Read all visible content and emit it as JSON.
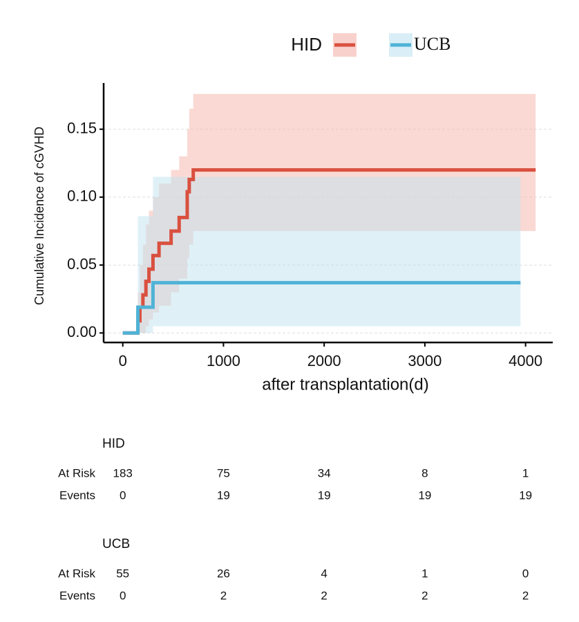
{
  "chart_data": {
    "type": "step",
    "y_label": "Cumulative Incidence of cGVHD",
    "x_label": "after transplantation(d)",
    "xlim": [
      -190,
      4270
    ],
    "ylim": [
      -0.007,
      0.184
    ],
    "xticks": [
      0,
      1000,
      2000,
      3000,
      4000
    ],
    "yticks": [
      {
        "value": 0,
        "label": "0.00"
      },
      {
        "value": 0.05,
        "label": "0.05"
      },
      {
        "value": 0.1,
        "label": "0.10"
      },
      {
        "value": 0.15,
        "label": "0.15"
      }
    ],
    "grid": true,
    "series": [
      {
        "name": "HID",
        "color": "#d9503f",
        "band_color": "#f5b3aa",
        "x": [
          0,
          150,
          170,
          200,
          230,
          260,
          300,
          360,
          420,
          480,
          530,
          560,
          600,
          640,
          660,
          700,
          4100
        ],
        "values": [
          0,
          0.009,
          0.019,
          0.028,
          0.038,
          0.047,
          0.057,
          0.066,
          0.066,
          0.075,
          0.075,
          0.085,
          0.085,
          0.104,
          0.113,
          0.12,
          0.12
        ],
        "upper": [
          0,
          0.03,
          0.05,
          0.065,
          0.08,
          0.09,
          0.1,
          0.11,
          0.11,
          0.12,
          0.12,
          0.13,
          0.13,
          0.15,
          0.165,
          0.176,
          0.176
        ],
        "lower": [
          0,
          0,
          0,
          0,
          0.005,
          0.01,
          0.015,
          0.02,
          0.02,
          0.03,
          0.03,
          0.04,
          0.04,
          0.055,
          0.065,
          0.075,
          0.075
        ]
      },
      {
        "name": "UCB",
        "color": "#4fb3d6",
        "band_color": "#bfe3f0",
        "x": [
          0,
          150,
          300,
          3950
        ],
        "values": [
          0,
          0.019,
          0.037,
          0.037
        ],
        "upper": [
          0,
          0.086,
          0.115,
          0.115
        ],
        "lower": [
          0,
          0,
          0.005,
          0.005
        ]
      }
    ],
    "risk_table": {
      "row_labels": [
        "At Risk",
        "Events"
      ],
      "groups": [
        {
          "name": "HID",
          "at_risk": [
            183,
            75,
            34,
            8,
            1
          ],
          "events": [
            0,
            19,
            19,
            19,
            19
          ]
        },
        {
          "name": "UCB",
          "at_risk": [
            55,
            26,
            4,
            1,
            0
          ],
          "events": [
            0,
            2,
            2,
            2,
            2
          ]
        }
      ]
    }
  }
}
